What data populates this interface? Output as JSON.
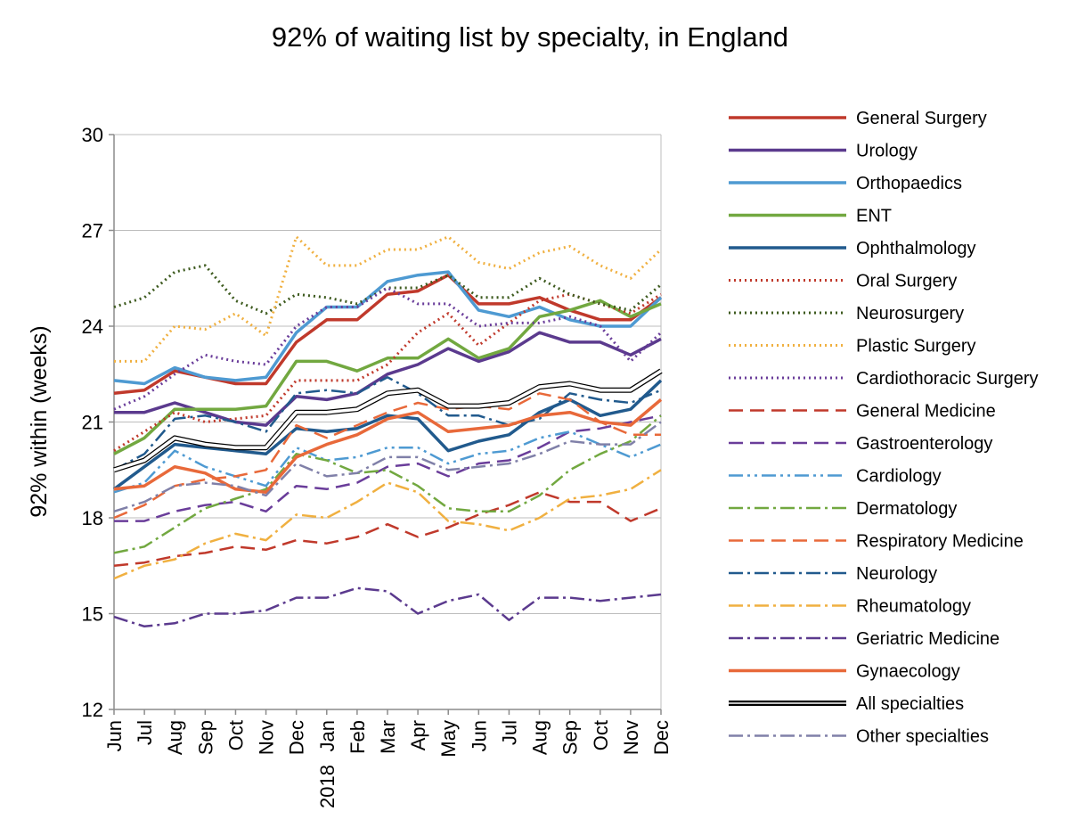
{
  "chart_data": {
    "type": "line",
    "title": "92% of waiting list by specialty, in England",
    "xlabel": "",
    "ylabel": "92% within (weeks)",
    "ylim": [
      12,
      30
    ],
    "yticks": [
      12,
      15,
      18,
      21,
      24,
      27,
      30
    ],
    "grid": "horizontal",
    "legend": "right",
    "categories": [
      "Jun",
      "Jul",
      "Aug",
      "Sep",
      "Oct",
      "Nov",
      "Dec",
      "Jan",
      "Feb",
      "Mar",
      "Apr",
      "May",
      "Jun",
      "Jul",
      "Aug",
      "Sep",
      "Oct",
      "Nov",
      "Dec"
    ],
    "year_label": {
      "index": 7,
      "text": "2018"
    },
    "series": [
      {
        "name": "General Surgery",
        "color": "#c0392b",
        "dash": "solid",
        "width": 3.5,
        "values": [
          21.9,
          22.0,
          22.6,
          22.4,
          22.2,
          22.2,
          23.5,
          24.2,
          24.2,
          25.0,
          25.1,
          25.6,
          24.7,
          24.7,
          24.9,
          24.5,
          24.2,
          24.2,
          24.9
        ]
      },
      {
        "name": "Urology",
        "color": "#5b3a8e",
        "dash": "solid",
        "width": 3.5,
        "values": [
          21.3,
          21.3,
          21.6,
          21.3,
          21.0,
          20.9,
          21.8,
          21.7,
          21.9,
          22.5,
          22.8,
          23.3,
          22.9,
          23.2,
          23.8,
          23.5,
          23.5,
          23.1,
          23.6
        ]
      },
      {
        "name": "Orthopaedics",
        "color": "#4e9ad2",
        "dash": "solid",
        "width": 3.5,
        "values": [
          22.3,
          22.2,
          22.7,
          22.4,
          22.3,
          22.4,
          23.8,
          24.6,
          24.6,
          25.4,
          25.6,
          25.7,
          24.5,
          24.3,
          24.6,
          24.2,
          24.0,
          24.0,
          24.9
        ]
      },
      {
        "name": "ENT",
        "color": "#72a840",
        "dash": "solid",
        "width": 3.5,
        "values": [
          20.0,
          20.5,
          21.4,
          21.4,
          21.4,
          21.5,
          22.9,
          22.9,
          22.6,
          23.0,
          23.0,
          23.6,
          23.0,
          23.3,
          24.3,
          24.5,
          24.8,
          24.3,
          24.7
        ]
      },
      {
        "name": "Ophthalmology",
        "color": "#215a8d",
        "dash": "solid",
        "width": 3.5,
        "values": [
          18.9,
          19.6,
          20.3,
          20.2,
          20.1,
          20.0,
          20.8,
          20.7,
          20.8,
          21.2,
          21.1,
          20.1,
          20.4,
          20.6,
          21.3,
          21.7,
          21.2,
          21.4,
          22.3
        ]
      },
      {
        "name": "Oral Surgery",
        "color": "#c0392b",
        "dash": "2,4",
        "width": 3,
        "values": [
          20.1,
          20.7,
          21.3,
          21.0,
          21.1,
          21.2,
          22.3,
          22.3,
          22.3,
          22.8,
          23.8,
          24.4,
          23.4,
          24.1,
          24.8,
          25.0,
          24.7,
          24.4,
          25.0
        ]
      },
      {
        "name": "Neurosurgery",
        "color": "#3d5a1e",
        "dash": "2,4",
        "width": 3,
        "values": [
          24.6,
          24.9,
          25.7,
          25.9,
          24.8,
          24.4,
          25.0,
          24.9,
          24.7,
          25.2,
          25.2,
          25.6,
          24.9,
          24.9,
          25.5,
          25.0,
          24.7,
          24.5,
          25.3
        ]
      },
      {
        "name": "Plastic Surgery",
        "color": "#f0b040",
        "dash": "2,4",
        "width": 3,
        "values": [
          22.9,
          22.9,
          24.0,
          23.9,
          24.4,
          23.7,
          26.8,
          25.9,
          25.9,
          26.4,
          26.4,
          26.8,
          26.0,
          25.8,
          26.3,
          26.5,
          25.9,
          25.5,
          26.4
        ]
      },
      {
        "name": "Cardiothoracic Surgery",
        "color": "#6a3d9a",
        "dash": "2,4",
        "width": 3,
        "values": [
          21.4,
          21.8,
          22.5,
          23.1,
          22.9,
          22.8,
          24.0,
          24.6,
          24.6,
          25.2,
          24.7,
          24.7,
          24.0,
          24.1,
          24.1,
          24.3,
          24.0,
          22.9,
          23.8
        ]
      },
      {
        "name": "General Medicine",
        "color": "#c0392b",
        "dash": "16,8",
        "width": 2.5,
        "values": [
          16.5,
          16.6,
          16.8,
          16.9,
          17.1,
          17.0,
          17.3,
          17.2,
          17.4,
          17.8,
          17.4,
          17.7,
          18.1,
          18.4,
          18.8,
          18.5,
          18.5,
          17.9,
          18.3
        ]
      },
      {
        "name": "Gastroenterology",
        "color": "#6a3d9a",
        "dash": "16,8",
        "width": 2.5,
        "values": [
          17.9,
          17.9,
          18.2,
          18.4,
          18.5,
          18.2,
          19.0,
          18.9,
          19.1,
          19.6,
          19.7,
          19.3,
          19.7,
          19.8,
          20.2,
          20.7,
          20.8,
          21.0,
          21.2
        ]
      },
      {
        "name": "Cardiology",
        "color": "#4e9ad2",
        "dash": "16,5,3,5,3,5",
        "width": 2.5,
        "values": [
          18.8,
          19.1,
          20.1,
          19.6,
          19.3,
          19.0,
          20.2,
          19.8,
          19.9,
          20.2,
          20.2,
          19.7,
          20.0,
          20.1,
          20.5,
          20.7,
          20.3,
          19.9,
          20.3
        ]
      },
      {
        "name": "Dermatology",
        "color": "#72a840",
        "dash": "16,5,3,5",
        "width": 2.5,
        "values": [
          16.9,
          17.1,
          17.7,
          18.3,
          18.6,
          18.9,
          20.0,
          19.8,
          19.4,
          19.5,
          19.0,
          18.3,
          18.2,
          18.2,
          18.7,
          19.5,
          20.0,
          20.4,
          21.2
        ]
      },
      {
        "name": "Respiratory Medicine",
        "color": "#e8693a",
        "dash": "16,8",
        "width": 2.5,
        "values": [
          18.0,
          18.4,
          19.0,
          19.2,
          19.3,
          19.5,
          20.9,
          20.5,
          20.9,
          21.3,
          21.6,
          21.4,
          21.5,
          21.4,
          21.9,
          21.7,
          21.0,
          20.6,
          20.6
        ]
      },
      {
        "name": "Neurology",
        "color": "#215a8d",
        "dash": "16,5,3,5",
        "width": 2.5,
        "values": [
          19.5,
          20.0,
          21.1,
          21.2,
          21.0,
          20.7,
          21.9,
          22.0,
          21.9,
          22.4,
          21.9,
          21.2,
          21.2,
          20.9,
          21.1,
          21.9,
          21.7,
          21.6,
          22.0
        ]
      },
      {
        "name": "Rheumatology",
        "color": "#f0b040",
        "dash": "16,5,3,5",
        "width": 2.5,
        "values": [
          16.1,
          16.5,
          16.7,
          17.2,
          17.5,
          17.3,
          18.1,
          18.0,
          18.5,
          19.1,
          18.8,
          17.9,
          17.8,
          17.6,
          18.0,
          18.6,
          18.7,
          18.9,
          19.5
        ]
      },
      {
        "name": "Geriatric Medicine",
        "color": "#5b3a8e",
        "dash": "16,5,3,5",
        "width": 2.5,
        "values": [
          14.9,
          14.6,
          14.7,
          15.0,
          15.0,
          15.1,
          15.5,
          15.5,
          15.8,
          15.7,
          15.0,
          15.4,
          15.6,
          14.8,
          15.5,
          15.5,
          15.4,
          15.5,
          15.6
        ]
      },
      {
        "name": "Gynaecology",
        "color": "#e8693a",
        "dash": "solid",
        "width": 3.5,
        "values": [
          18.9,
          19.0,
          19.6,
          19.4,
          18.9,
          18.8,
          19.9,
          20.3,
          20.6,
          21.1,
          21.3,
          20.7,
          20.8,
          20.9,
          21.2,
          21.3,
          21.0,
          20.9,
          21.7
        ]
      },
      {
        "name": "All specialties",
        "color": "#000000",
        "dash": "solid",
        "width": 6,
        "outlined": true,
        "values": [
          19.5,
          19.8,
          20.5,
          20.3,
          20.2,
          20.2,
          21.3,
          21.3,
          21.4,
          21.9,
          22.0,
          21.5,
          21.5,
          21.6,
          22.1,
          22.2,
          22.0,
          22.0,
          22.6
        ]
      },
      {
        "name": "Other specialties",
        "color": "#8080a8",
        "dash": "16,5,3,5",
        "width": 2.5,
        "values": [
          18.2,
          18.5,
          19.0,
          19.1,
          19.0,
          18.7,
          19.7,
          19.3,
          19.4,
          19.9,
          19.9,
          19.5,
          19.6,
          19.7,
          20.0,
          20.4,
          20.3,
          20.3,
          21.0
        ]
      }
    ]
  }
}
